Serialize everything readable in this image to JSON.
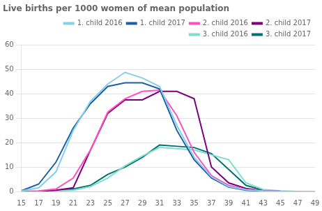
{
  "chart_data": {
    "type": "line",
    "title": "Live births per 1000 women of mean population",
    "x": [
      15,
      17,
      19,
      21,
      23,
      25,
      27,
      29,
      31,
      33,
      35,
      37,
      39,
      41,
      43,
      45,
      47,
      49
    ],
    "series": [
      {
        "name": "1. child 2016",
        "color": "#87CEEB",
        "values": [
          0.2,
          1.5,
          8.0,
          25.0,
          37.0,
          44.0,
          48.8,
          46.5,
          43.0,
          27.0,
          14.0,
          6.0,
          2.0,
          0.7,
          0.2,
          0.05,
          0.0,
          0.0
        ]
      },
      {
        "name": "1. child 2017",
        "color": "#1a5fa8",
        "values": [
          0.3,
          3.0,
          12.0,
          26.0,
          36.0,
          43.0,
          44.5,
          44.5,
          42.0,
          25.0,
          13.0,
          5.5,
          1.8,
          0.5,
          0.15,
          0.03,
          0.0,
          0.0
        ]
      },
      {
        "name": "2. child 2016",
        "color": "#FF50C0",
        "values": [
          0.0,
          0.2,
          1.0,
          5.5,
          17.0,
          32.5,
          38.0,
          41.0,
          41.5,
          31.0,
          16.0,
          6.5,
          2.5,
          0.8,
          0.2,
          0.0,
          0.0,
          0.0
        ]
      },
      {
        "name": "2. child 2017",
        "color": "#7B0080",
        "values": [
          0.0,
          0.1,
          0.5,
          1.5,
          17.0,
          32.0,
          37.5,
          37.5,
          41.0,
          41.0,
          38.0,
          10.0,
          3.5,
          1.2,
          0.3,
          0.05,
          0.0,
          0.0
        ]
      },
      {
        "name": "3. child 2016",
        "color": "#7FDDCC",
        "values": [
          0.0,
          0.0,
          0.2,
          0.5,
          2.0,
          5.5,
          10.5,
          14.5,
          18.0,
          17.5,
          17.0,
          15.0,
          13.0,
          3.5,
          0.8,
          0.2,
          0.0,
          0.0
        ]
      },
      {
        "name": "3. child 2017",
        "color": "#007070",
        "values": [
          0.0,
          0.0,
          0.3,
          1.0,
          2.5,
          7.0,
          10.0,
          14.0,
          19.0,
          18.5,
          18.0,
          15.5,
          9.0,
          2.5,
          0.5,
          0.1,
          0.0,
          0.0
        ]
      }
    ],
    "xlim": [
      15,
      49
    ],
    "xticks": [
      15,
      17,
      19,
      21,
      23,
      25,
      27,
      29,
      31,
      33,
      35,
      37,
      39,
      41,
      43,
      45,
      47,
      49
    ],
    "ylim": [
      0,
      60
    ],
    "yticks": [
      0,
      10,
      20,
      30,
      40,
      50,
      60
    ],
    "grid": "y",
    "legend": "upper right",
    "marker": "none"
  }
}
